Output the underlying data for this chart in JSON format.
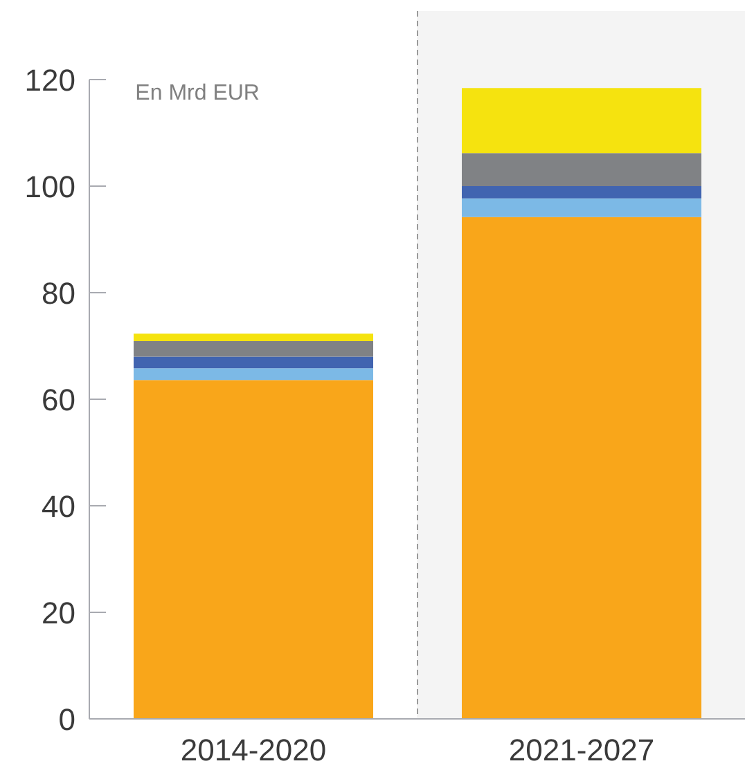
{
  "chart_data": {
    "type": "bar",
    "stacked": true,
    "categories": [
      "2014-2020",
      "2021-2027"
    ],
    "series": [
      {
        "color": "#f9a61a",
        "values": [
          63.6,
          94.2
        ]
      },
      {
        "color": "#7cb9e6",
        "values": [
          2.2,
          3.5
        ]
      },
      {
        "color": "#4164b0",
        "values": [
          2.2,
          2.3
        ]
      },
      {
        "color": "#808285",
        "values": [
          2.9,
          6.2
        ]
      },
      {
        "color": "#f5e30f",
        "values": [
          1.4,
          12.2
        ]
      }
    ],
    "ylim": [
      0,
      120
    ],
    "yticks": [
      0,
      20,
      40,
      60,
      80,
      100,
      120
    ],
    "grid": false,
    "annotations": [
      "En Mrd EUR"
    ]
  }
}
